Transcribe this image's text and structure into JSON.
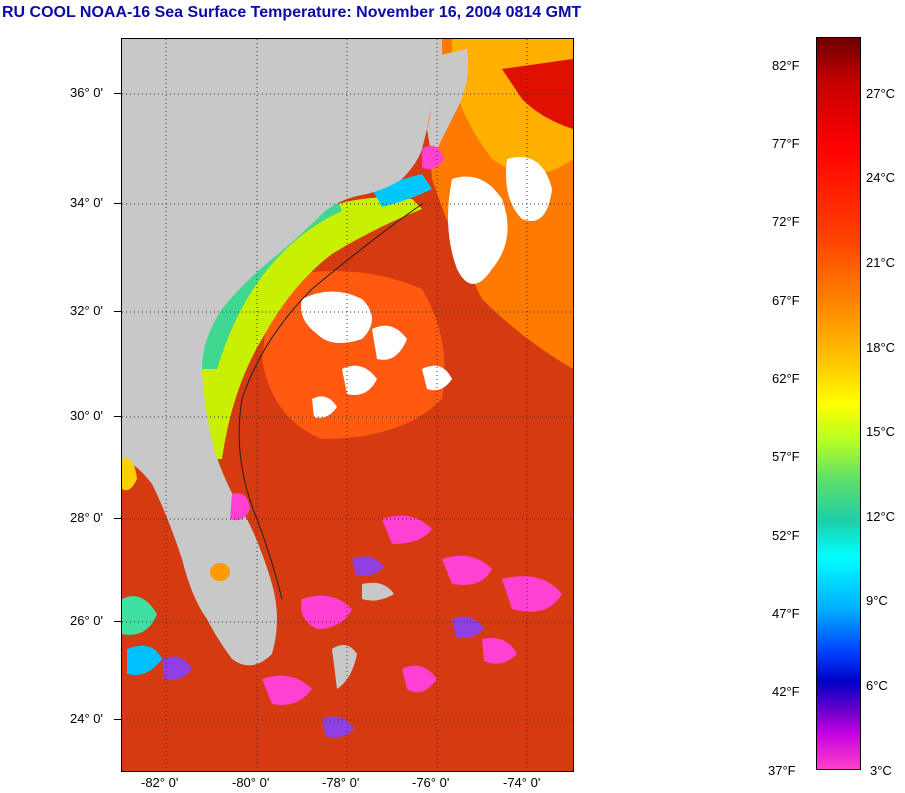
{
  "title": "RU COOL  NOAA-16  Sea Surface Temperature:  November 16, 2004 0814 GMT",
  "map": {
    "latitude_labels": [
      "36° 0'",
      "34° 0'",
      "32° 0'",
      "30° 0'",
      "28° 0'",
      "26° 0'",
      "24° 0'"
    ],
    "longitude_labels": [
      "-82° 0'",
      "-80° 0'",
      "-78° 0'",
      "-76° 0'",
      "-74° 0'"
    ],
    "land_color": "#c8c8c8",
    "cloud_color": "#ffffff",
    "gulf_stream_color": "#ff2a00"
  },
  "colorbar": {
    "fahrenheit_labels": [
      "82°F",
      "77°F",
      "72°F",
      "67°F",
      "62°F",
      "57°F",
      "52°F",
      "47°F",
      "42°F",
      "37°F"
    ],
    "celsius_labels": [
      "27°C",
      "24°C",
      "21°C",
      "18°C",
      "15°C",
      "12°C",
      "9°C",
      "6°C",
      "3°C"
    ]
  }
}
